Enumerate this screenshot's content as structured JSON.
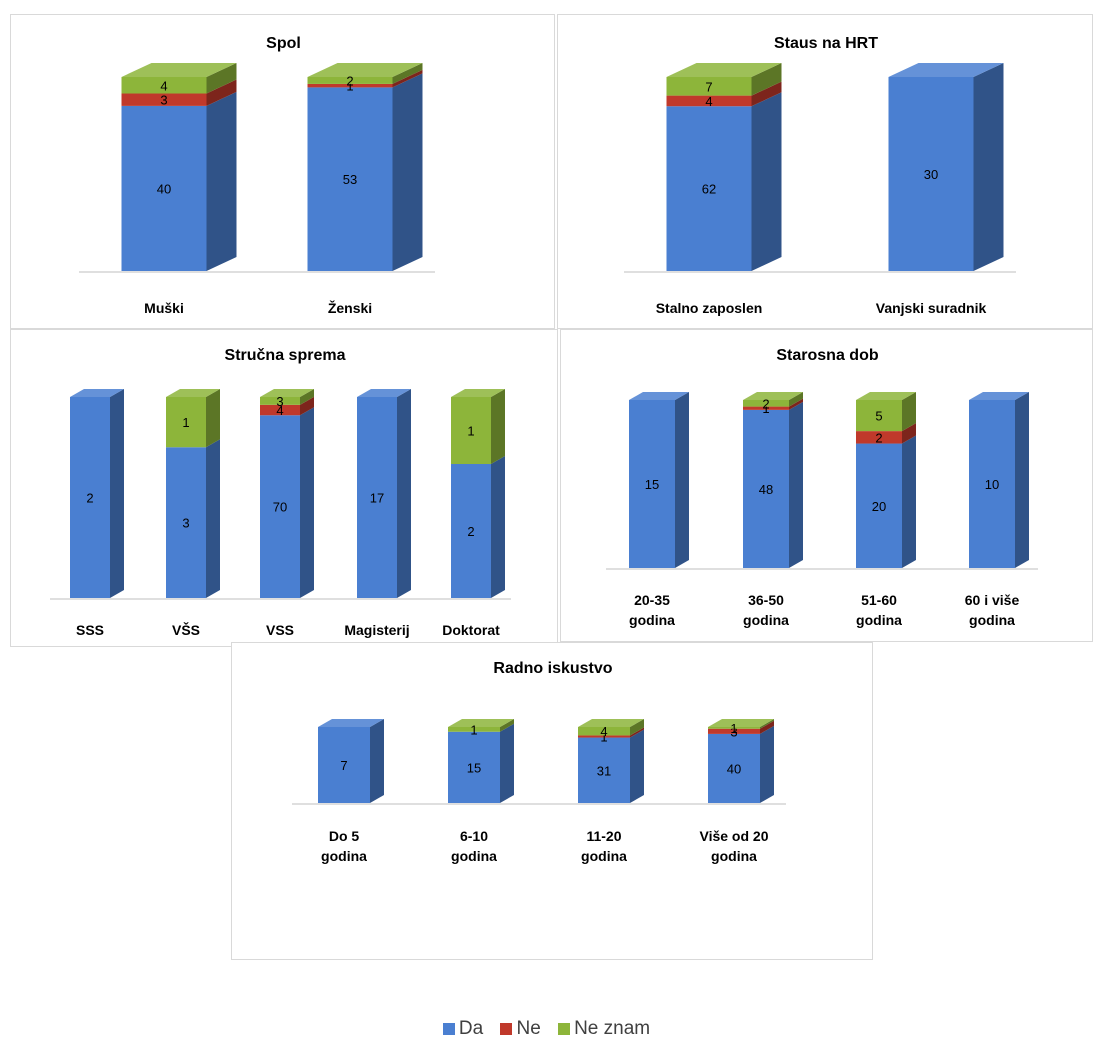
{
  "colors": {
    "da": "#4a7fd1",
    "ne": "#c0392b",
    "ne_znam": "#8db53a"
  },
  "legend": {
    "da": "Da",
    "ne": "Ne",
    "ne_znam": "Ne znam"
  },
  "chart_data": [
    {
      "type": "bar",
      "stacked": true,
      "title": "Spol",
      "categories": [
        [
          "Muški"
        ],
        [
          "Ženski"
        ]
      ],
      "series": [
        {
          "name": "Da",
          "values": [
            40,
            53
          ]
        },
        {
          "name": "Ne",
          "values": [
            3,
            1
          ]
        },
        {
          "name": "Ne znam",
          "values": [
            4,
            2
          ]
        }
      ]
    },
    {
      "type": "bar",
      "stacked": true,
      "title": "Staus na HRT",
      "categories": [
        [
          "Stalno zaposlen"
        ],
        [
          "Vanjski suradnik"
        ]
      ],
      "series": [
        {
          "name": "Da",
          "values": [
            62,
            30
          ]
        },
        {
          "name": "Ne",
          "values": [
            4,
            null
          ]
        },
        {
          "name": "Ne znam",
          "values": [
            7,
            null
          ]
        }
      ]
    },
    {
      "type": "bar",
      "stacked": true,
      "title": "Stručna sprema",
      "categories": [
        [
          "SSS"
        ],
        [
          "VŠS"
        ],
        [
          "VSS"
        ],
        [
          "Magisterij"
        ],
        [
          "Doktorat"
        ]
      ],
      "series": [
        {
          "name": "Da",
          "values": [
            2,
            3,
            70,
            17,
            2
          ]
        },
        {
          "name": "Ne",
          "values": [
            null,
            null,
            4,
            null,
            null
          ]
        },
        {
          "name": "Ne znam",
          "values": [
            null,
            1,
            3,
            null,
            1
          ]
        }
      ]
    },
    {
      "type": "bar",
      "stacked": true,
      "title": "Starosna dob",
      "categories": [
        [
          "20-35",
          "godina"
        ],
        [
          "36-50",
          "godina"
        ],
        [
          "51-60",
          "godina"
        ],
        [
          "60 i više",
          "godina"
        ]
      ],
      "series": [
        {
          "name": "Da",
          "values": [
            15,
            48,
            20,
            10
          ]
        },
        {
          "name": "Ne",
          "values": [
            null,
            1,
            2,
            null
          ]
        },
        {
          "name": "Ne znam",
          "values": [
            null,
            2,
            5,
            null
          ]
        }
      ]
    },
    {
      "type": "bar",
      "stacked": true,
      "title": "Radno iskustvo",
      "categories": [
        [
          "Do 5",
          "godina"
        ],
        [
          "6-10",
          "godina"
        ],
        [
          "11-20",
          "godina"
        ],
        [
          "Više od 20",
          "godina"
        ]
      ],
      "series": [
        {
          "name": "Da",
          "values": [
            7,
            15,
            31,
            40
          ]
        },
        {
          "name": "Ne",
          "values": [
            null,
            null,
            1,
            3
          ]
        },
        {
          "name": "Ne znam",
          "values": [
            null,
            1,
            4,
            1
          ]
        }
      ]
    }
  ]
}
